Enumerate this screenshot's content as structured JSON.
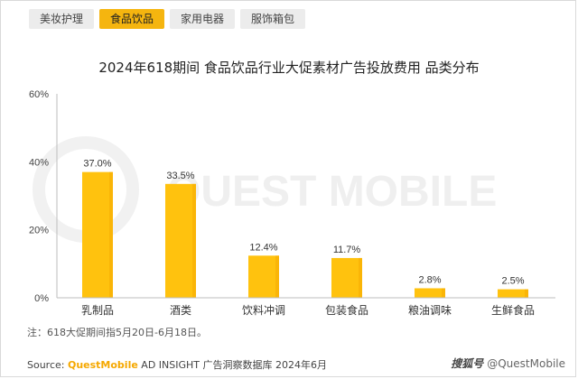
{
  "tabs": [
    {
      "label": "美妆护理",
      "active": false
    },
    {
      "label": "食品饮品",
      "active": true
    },
    {
      "label": "家用电器",
      "active": false
    },
    {
      "label": "服饰箱包",
      "active": false
    }
  ],
  "watermark": "QUEST MOBILE",
  "note": "注：618大促期间指5月20日-6月18日。",
  "source": {
    "prefix": "Source: ",
    "brand": "QuestMobile",
    "rest": " AD INSIGHT 广告洞察数据库 2024年6月"
  },
  "credit": {
    "site": "搜狐号",
    "handle": "@QuestMobile"
  },
  "colors": {
    "bar": "#ffc20e",
    "bar_dark": "#f5a800",
    "active_tab": "#f5b50f"
  },
  "chart_data": {
    "type": "bar",
    "title": "2024年618期间 食品饮品行业大促素材广告投放费用 品类分布",
    "categories": [
      "乳制品",
      "酒类",
      "饮料冲调",
      "包装食品",
      "粮油调味",
      "生鲜食品"
    ],
    "values": [
      37.0,
      33.5,
      12.4,
      11.7,
      2.8,
      2.5
    ],
    "value_labels": [
      "37.0%",
      "33.5%",
      "12.4%",
      "11.7%",
      "2.8%",
      "2.5%"
    ],
    "ylim": [
      0,
      60
    ],
    "yticks": [
      0,
      20,
      40,
      60
    ],
    "ytick_labels": [
      "0%",
      "20%",
      "40%",
      "60%"
    ],
    "xlabel": "",
    "ylabel": "",
    "grid": false
  }
}
